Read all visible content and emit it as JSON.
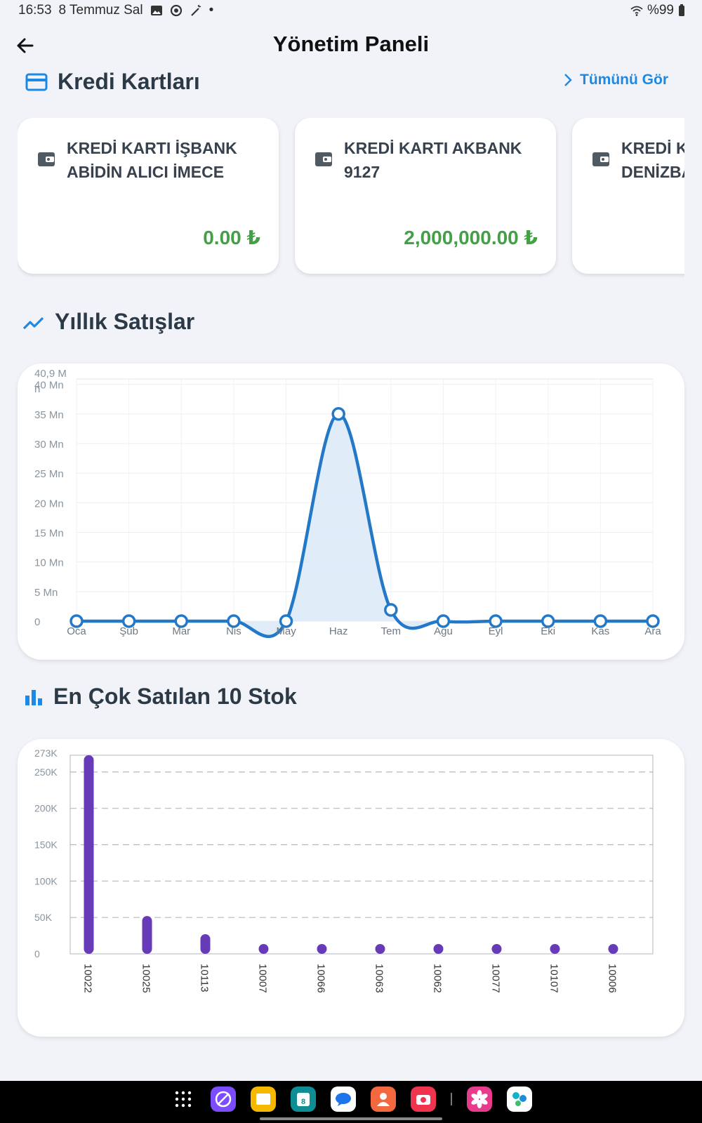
{
  "status_bar": {
    "time": "16:53",
    "date": "8 Temmuz Sal",
    "dot": "•",
    "battery": "%99"
  },
  "app_bar": {
    "title": "Yönetim Paneli"
  },
  "credit_cards": {
    "title": "Kredi Kartları",
    "see_all": "Tümünü Gör",
    "cards": [
      {
        "name": "KREDİ KARTI İŞBANK ABİDİN ALICI İMECE",
        "amount": "0.00 ₺"
      },
      {
        "name": "KREDİ KARTI AKBANK 9127",
        "amount": "2,000,000.00 ₺"
      },
      {
        "name": "KREDİ KARTI DENİZBANK",
        "amount": ""
      }
    ]
  },
  "annual_sales": {
    "title": "Yıllık Satışlar",
    "chart_data": {
      "type": "area",
      "categories": [
        "Oca",
        "Şub",
        "Mar",
        "Nis",
        "May",
        "Haz",
        "Tem",
        "Agu",
        "Eyl",
        "Eki",
        "Kas",
        "Ara"
      ],
      "values": [
        0,
        0,
        0,
        0,
        0,
        35000000,
        1900000,
        0,
        0,
        0,
        0,
        0
      ],
      "max_label": "40,9 M",
      "max_label_suffix": "n",
      "ylim": [
        0,
        40900000
      ],
      "yticks": [
        0,
        5000000,
        10000000,
        15000000,
        20000000,
        25000000,
        30000000,
        35000000,
        40000000
      ],
      "ytick_labels": [
        "0",
        "5 Mn",
        "10 Mn",
        "15 Mn",
        "20 Mn",
        "25 Mn",
        "30 Mn",
        "35 Mn",
        "40 Mn"
      ],
      "grid": true,
      "color": "#2478c8",
      "fill": "#dce9f8"
    }
  },
  "top_stock": {
    "title": "En Çok Satılan 10 Stok",
    "chart_data": {
      "type": "bar",
      "categories": [
        "10022",
        "10025",
        "10113",
        "10007",
        "10066",
        "10063",
        "10062",
        "10077",
        "10107",
        "10006"
      ],
      "values": [
        273000,
        52000,
        27000,
        1500,
        1200,
        1000,
        900,
        800,
        700,
        600
      ],
      "max_label": "273K",
      "ylim": [
        0,
        273000
      ],
      "yticks": [
        0,
        50000,
        100000,
        150000,
        200000,
        250000
      ],
      "ytick_labels": [
        "0",
        "50K",
        "100K",
        "150K",
        "200K",
        "250K"
      ],
      "grid": true,
      "color": "#673ab7"
    }
  },
  "nav_apps": [
    {
      "icon": "app-drawer-icon",
      "color": "#000000"
    },
    {
      "icon": "internet-browser-icon",
      "color": "#7c4dff"
    },
    {
      "icon": "my-files-icon",
      "color": "#f6b800"
    },
    {
      "icon": "calendar-icon",
      "color": "#0f8d94"
    },
    {
      "icon": "messages-icon",
      "color": "#ffffff"
    },
    {
      "icon": "contacts-icon",
      "color": "#f4683f"
    },
    {
      "icon": "camera-icon",
      "color": "#f0344f"
    },
    {
      "icon": "gallery-icon",
      "color": "#e63c8b"
    },
    {
      "icon": "smart-switch-icon",
      "color": "#ffffff"
    }
  ],
  "calendar_day": "8"
}
